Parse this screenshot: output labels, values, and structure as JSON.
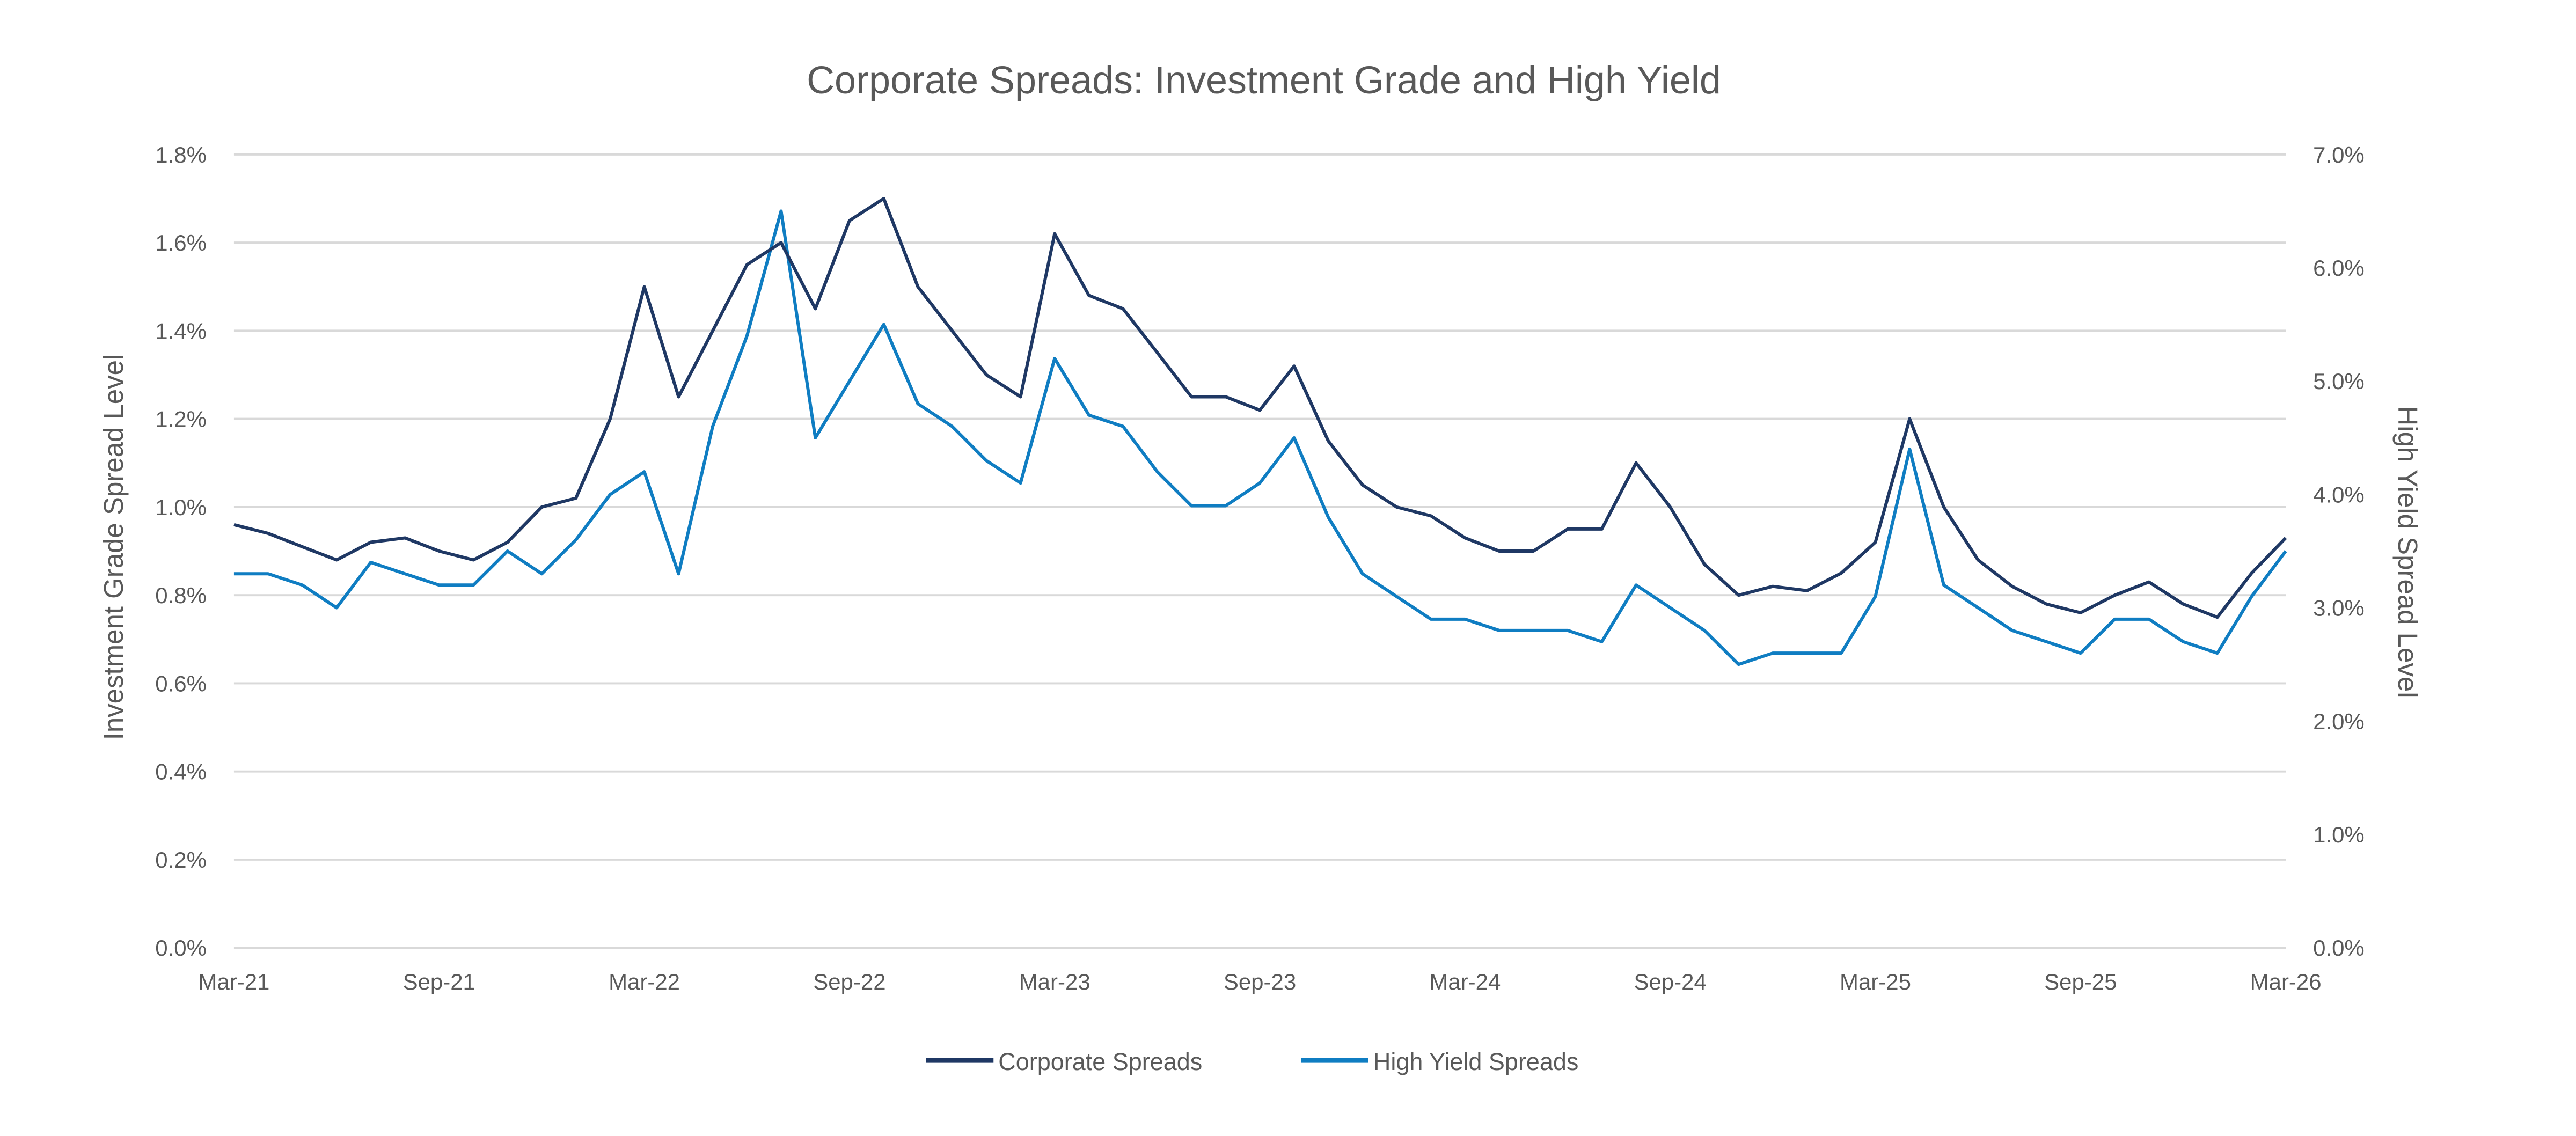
{
  "chart_data": {
    "type": "line",
    "title": "Corporate Spreads: Investment Grade and High Yield",
    "ylabel": "Investment Grade Spread Level",
    "y2label": "High Yield Spread Level",
    "ylim": [
      0,
      1.8
    ],
    "y2lim": [
      0,
      7.0
    ],
    "yticks": [
      "0.0%",
      "0.2%",
      "0.4%",
      "0.6%",
      "0.8%",
      "1.0%",
      "1.2%",
      "1.4%",
      "1.6%",
      "1.8%"
    ],
    "y2ticks": [
      "0.0%",
      "1.0%",
      "2.0%",
      "3.0%",
      "4.0%",
      "5.0%",
      "6.0%",
      "7.0%"
    ],
    "xticks": [
      "Mar-21",
      "Sep-21",
      "Mar-22",
      "Sep-22",
      "Mar-23",
      "Sep-23",
      "Mar-24",
      "Sep-24",
      "Mar-25",
      "Sep-25",
      "Mar-26"
    ],
    "x_start": "Mar-21",
    "x_end": "Mar-26",
    "x_step": "monthly",
    "grid": true,
    "legend_position": "bottom",
    "colors": {
      "corporate": "#1f3864",
      "high_yield": "#0f7dc2"
    },
    "series": [
      {
        "name": "Corporate Spreads",
        "axis": "left",
        "values": [
          0.96,
          0.94,
          0.91,
          0.88,
          0.92,
          0.93,
          0.9,
          0.88,
          0.92,
          1.0,
          1.02,
          1.2,
          1.5,
          1.25,
          1.4,
          1.55,
          1.6,
          1.45,
          1.65,
          1.7,
          1.5,
          1.4,
          1.3,
          1.25,
          1.62,
          1.48,
          1.45,
          1.35,
          1.25,
          1.25,
          1.22,
          1.32,
          1.15,
          1.05,
          1.0,
          0.98,
          0.93,
          0.9,
          0.9,
          0.95,
          0.95,
          1.1,
          1.0,
          0.87,
          0.8,
          0.82,
          0.81,
          0.85,
          0.92,
          1.2,
          1.0,
          0.88,
          0.82,
          0.78,
          0.76,
          0.8,
          0.83,
          0.78,
          0.75,
          0.85,
          0.93
        ]
      },
      {
        "name": "High Yield Spreads",
        "axis": "right",
        "values": [
          3.3,
          3.3,
          3.2,
          3.0,
          3.4,
          3.3,
          3.2,
          3.2,
          3.5,
          3.3,
          3.6,
          4.0,
          4.2,
          3.3,
          4.6,
          5.4,
          6.5,
          4.5,
          5.0,
          5.5,
          4.8,
          4.6,
          4.3,
          4.1,
          5.2,
          4.7,
          4.6,
          4.2,
          3.9,
          3.9,
          4.1,
          4.5,
          3.8,
          3.3,
          3.1,
          2.9,
          2.9,
          2.8,
          2.8,
          2.8,
          2.7,
          3.2,
          3.0,
          2.8,
          2.5,
          2.6,
          2.6,
          2.6,
          3.1,
          4.4,
          3.2,
          3.0,
          2.8,
          2.7,
          2.6,
          2.9,
          2.9,
          2.7,
          2.6,
          3.1,
          3.5
        ]
      }
    ]
  }
}
